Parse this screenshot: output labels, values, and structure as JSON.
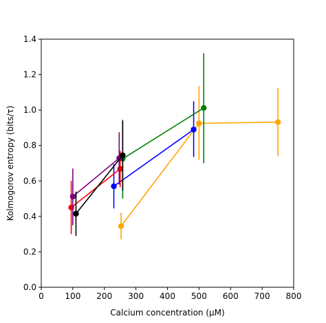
{
  "chart_data": {
    "type": "scatter",
    "xlabel": "Calcium concentration (μM)",
    "ylabel": "Kolmogorov entropy (bits/τ)",
    "xlim": [
      0,
      800
    ],
    "ylim": [
      0,
      1.4
    ],
    "xticks": [
      0,
      100,
      200,
      300,
      400,
      500,
      600,
      700,
      800
    ],
    "yticks": [
      0.0,
      0.2,
      0.4,
      0.6,
      0.8,
      1.0,
      1.2,
      1.4
    ],
    "xtick_labels": [
      "0",
      "100",
      "200",
      "300",
      "400",
      "500",
      "600",
      "700",
      "800"
    ],
    "ytick_labels": [
      "0.0",
      "0.2",
      "0.4",
      "0.6",
      "0.8",
      "1.0",
      "1.2",
      "1.4"
    ],
    "grid": false,
    "legend": "none",
    "series": [
      {
        "color": "#ffa500",
        "points": [
          {
            "x": 253,
            "y": 0.345,
            "lo": 0.27,
            "hi": 0.42
          },
          {
            "x": 500,
            "y": 0.925,
            "lo": 0.72,
            "hi": 1.135
          },
          {
            "x": 750,
            "y": 0.932,
            "lo": 0.74,
            "hi": 1.125
          }
        ]
      },
      {
        "color": "#0000ff",
        "points": [
          {
            "x": 230,
            "y": 0.57,
            "lo": 0.445,
            "hi": 0.695
          },
          {
            "x": 483,
            "y": 0.89,
            "lo": 0.735,
            "hi": 1.05
          }
        ]
      },
      {
        "color": "#008000",
        "points": [
          {
            "x": 258,
            "y": 0.725,
            "lo": 0.5,
            "hi": 0.945
          },
          {
            "x": 515,
            "y": 1.012,
            "lo": 0.7,
            "hi": 1.32
          }
        ]
      },
      {
        "color": "#ff0000",
        "points": [
          {
            "x": 95,
            "y": 0.45,
            "lo": 0.3,
            "hi": 0.6
          },
          {
            "x": 250,
            "y": 0.668,
            "lo": 0.565,
            "hi": 0.77
          }
        ]
      },
      {
        "color": "#800080",
        "points": [
          {
            "x": 100,
            "y": 0.512,
            "lo": 0.35,
            "hi": 0.67
          },
          {
            "x": 247,
            "y": 0.728,
            "lo": 0.58,
            "hi": 0.875
          }
        ]
      },
      {
        "color": "#000000",
        "points": [
          {
            "x": 110,
            "y": 0.415,
            "lo": 0.29,
            "hi": 0.54
          },
          {
            "x": 258,
            "y": 0.745,
            "lo": 0.545,
            "hi": 0.94
          }
        ]
      }
    ]
  }
}
